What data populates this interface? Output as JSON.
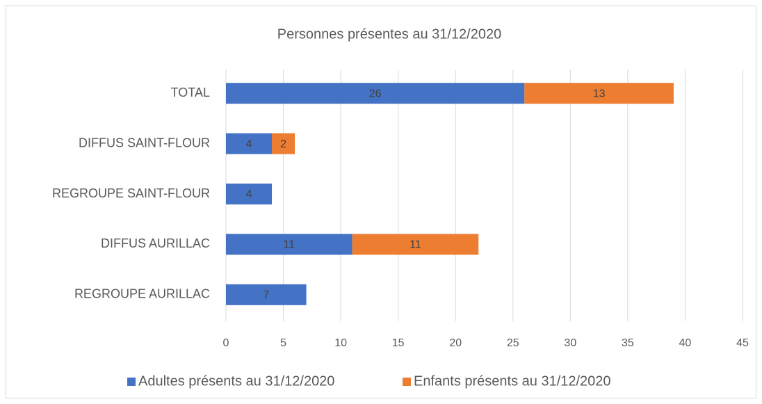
{
  "chart_data": {
    "type": "stacked-barh",
    "title": "Personnes présentes au 31/12/2020",
    "categories": [
      "TOTAL",
      "DIFFUS SAINT-FLOUR",
      "REGROUPE SAINT-FLOUR",
      "DIFFUS AURILLAC",
      "REGROUPE AURILLAC"
    ],
    "series": [
      {
        "name": "Adultes présents au 31/12/2020",
        "color": "#4472c4",
        "values": [
          26,
          4,
          4,
          11,
          7
        ]
      },
      {
        "name": "Enfants présents au 31/12/2020",
        "color": "#ed7d31",
        "values": [
          13,
          2,
          null,
          11,
          null
        ]
      }
    ],
    "xlim": [
      0,
      45
    ],
    "xticks": [
      0,
      5,
      10,
      15,
      20,
      25,
      30,
      35,
      40,
      45
    ],
    "grid": true,
    "legend": "bottom"
  }
}
